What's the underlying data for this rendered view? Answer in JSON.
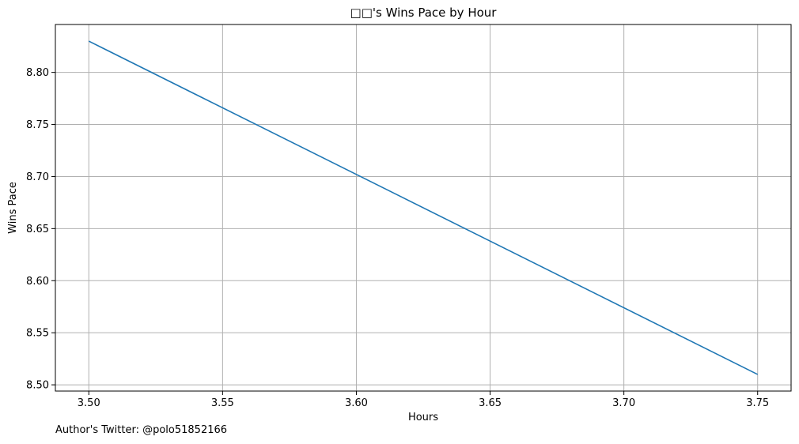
{
  "chart_data": {
    "type": "line",
    "title": "□□'s Wins Pace by Hour",
    "xlabel": "Hours",
    "ylabel": "Wins Pace",
    "x": [
      3.5,
      3.75
    ],
    "series": [
      {
        "values": [
          8.83,
          8.51
        ],
        "color": "#1f77b4"
      }
    ],
    "xlim": [
      3.4875,
      3.7625
    ],
    "ylim": [
      8.494,
      8.846
    ],
    "xticks": [
      3.5,
      3.55,
      3.6,
      3.65,
      3.7,
      3.75
    ],
    "xtick_labels": [
      "3.50",
      "3.55",
      "3.60",
      "3.65",
      "3.70",
      "3.75"
    ],
    "yticks": [
      8.5,
      8.55,
      8.6,
      8.65,
      8.7,
      8.75,
      8.8
    ],
    "ytick_labels": [
      "8.50",
      "8.55",
      "8.60",
      "8.65",
      "8.70",
      "8.75",
      "8.80"
    ],
    "grid": true,
    "grid_color": "#b0b0b0",
    "axis_color": "#000000"
  },
  "footer": {
    "note": "Author's Twitter: @polo51852166"
  }
}
